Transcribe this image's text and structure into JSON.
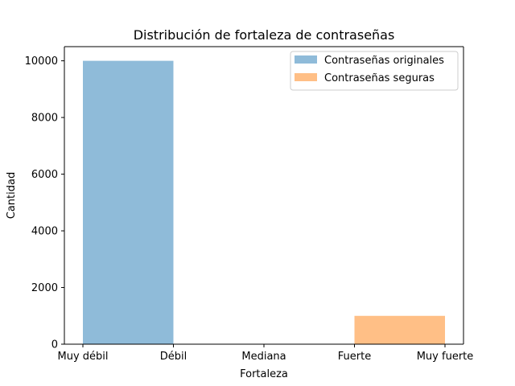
{
  "chart_data": {
    "type": "bar",
    "title": "Distribución de fortaleza de contraseñas",
    "xlabel": "Fortaleza",
    "ylabel": "Cantidad",
    "categories": [
      "Muy débil",
      "Débil",
      "Mediana",
      "Fuerte",
      "Muy fuerte"
    ],
    "ylim": [
      0,
      10500
    ],
    "yticks": [
      0,
      2000,
      4000,
      6000,
      8000,
      10000
    ],
    "grid": false,
    "legend_position": "top-right",
    "series": [
      {
        "name": "Contraseñas originales",
        "color": "#8fbbd9",
        "bars": [
          {
            "from": "Muy débil",
            "to": "Débil",
            "value": 10000
          }
        ]
      },
      {
        "name": "Contraseñas seguras",
        "color": "#ffbf86",
        "bars": [
          {
            "from": "Fuerte",
            "to": "Muy fuerte",
            "value": 1000
          }
        ]
      }
    ]
  }
}
